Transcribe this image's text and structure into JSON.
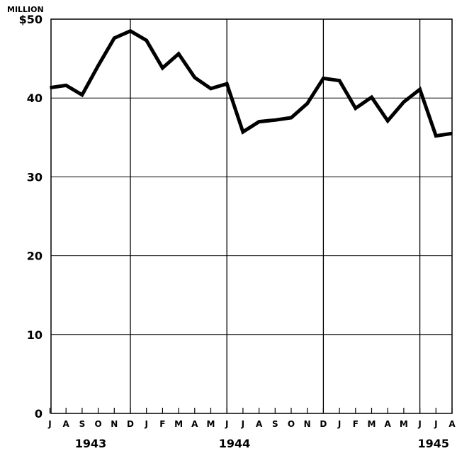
{
  "chart_data": {
    "type": "line",
    "unit_label": "MILLION",
    "ylim": [
      0,
      50
    ],
    "y_ticks": [
      {
        "value": 0,
        "label": "0"
      },
      {
        "value": 10,
        "label": "10"
      },
      {
        "value": 20,
        "label": "20"
      },
      {
        "value": 30,
        "label": "30"
      },
      {
        "value": 40,
        "label": "40"
      },
      {
        "value": 50,
        "label": "$50"
      }
    ],
    "x_month_labels": [
      "J",
      "A",
      "S",
      "O",
      "N",
      "D",
      "J",
      "F",
      "M",
      "A",
      "M",
      "J",
      "J",
      "A",
      "S",
      "O",
      "N",
      "D",
      "J",
      "F",
      "M",
      "A",
      "M",
      "J",
      "J",
      "A"
    ],
    "years": [
      {
        "label": "1943",
        "first_month_index": 0,
        "last_month_index": 5
      },
      {
        "label": "1944",
        "first_month_index": 6,
        "last_month_index": 17
      },
      {
        "label": "1945",
        "first_month_index": 18,
        "last_month_index": 25
      }
    ],
    "x": [
      "1943-07",
      "1943-08",
      "1943-09",
      "1943-10",
      "1943-11",
      "1943-12",
      "1944-01",
      "1944-02",
      "1944-03",
      "1944-04",
      "1944-05",
      "1944-06",
      "1944-07",
      "1944-08",
      "1944-09",
      "1944-10",
      "1944-11",
      "1944-12",
      "1945-01",
      "1945-02",
      "1945-03",
      "1945-04",
      "1945-05",
      "1945-06",
      "1945-07",
      "1945-08"
    ],
    "series": [
      {
        "values": [
          41.3,
          41.6,
          40.4,
          44.1,
          47.6,
          48.5,
          47.3,
          43.8,
          45.6,
          42.6,
          41.2,
          41.8,
          35.7,
          37.0,
          37.2,
          37.5,
          39.3,
          42.5,
          42.2,
          38.7,
          40.1,
          37.1,
          39.5,
          41.1,
          35.2,
          35.5
        ]
      }
    ],
    "major_vertical_lines_at_month_index": [
      5,
      11,
      17,
      23
    ],
    "grid": true
  }
}
